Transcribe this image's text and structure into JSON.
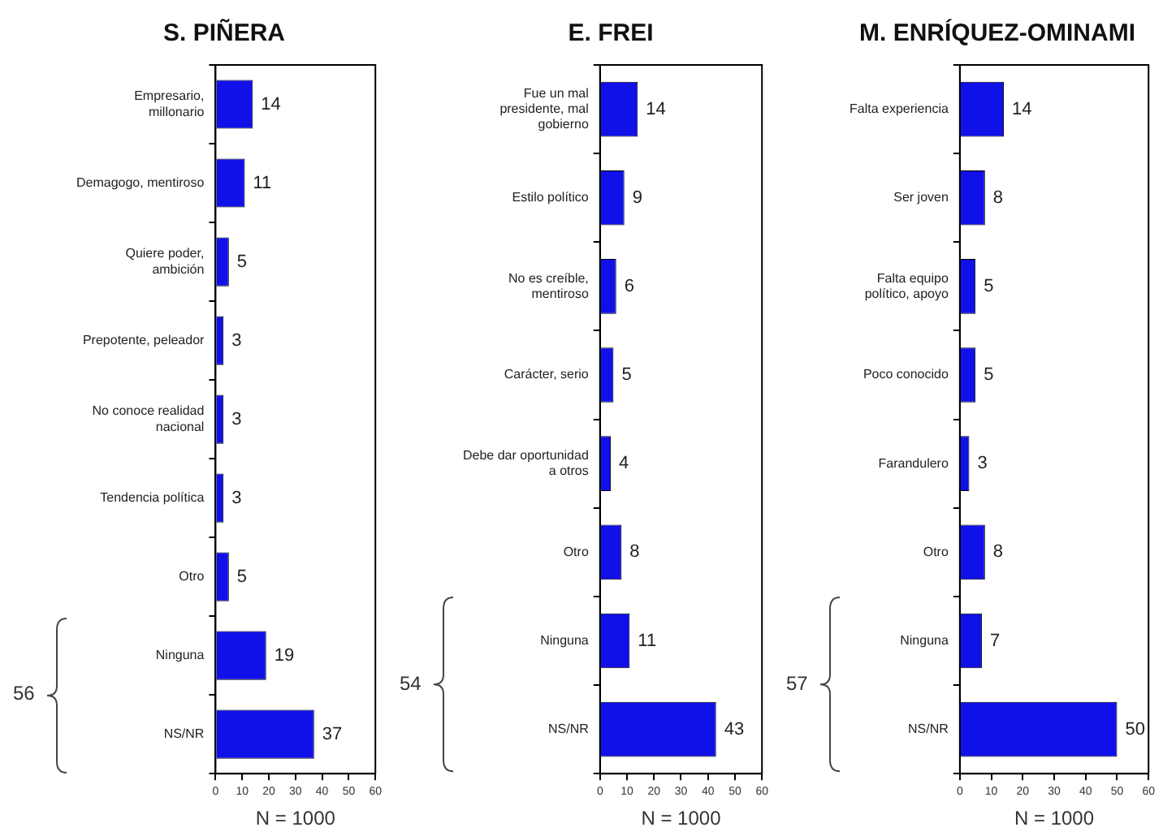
{
  "chart_data": [
    {
      "type": "bar",
      "orientation": "horizontal",
      "title": "S. PIÑERA",
      "categories": [
        "Empresario, millonario",
        "Demagogo, mentiroso",
        "Quiere poder, ambición",
        "Prepotente, peleador",
        "No conoce realidad nacional",
        "Tendencia política",
        "Otro",
        "Ninguna",
        "NS/NR"
      ],
      "values": [
        14,
        11,
        5,
        3,
        3,
        3,
        5,
        19,
        37
      ],
      "color": "#1010e8",
      "xlim": [
        0,
        60
      ],
      "xticks": [
        0,
        10,
        20,
        30,
        40,
        50,
        60
      ],
      "data_labels": true,
      "annotations": [
        "56",
        "N = 1000"
      ]
    },
    {
      "type": "bar",
      "orientation": "horizontal",
      "title": "E. FREI",
      "categories": [
        "Fue un mal presidente, mal gobierno",
        "Estilo político",
        "No es creíble, mentiroso",
        "Carácter, serio",
        "Debe dar oportunidad a otros",
        "Otro",
        "Ninguna",
        "NS/NR"
      ],
      "values": [
        14,
        9,
        6,
        5,
        4,
        8,
        11,
        43
      ],
      "color": "#1010e8",
      "xlim": [
        0,
        60
      ],
      "xticks": [
        0,
        10,
        20,
        30,
        40,
        50,
        60
      ],
      "data_labels": true,
      "annotations": [
        "54",
        "N = 1000"
      ]
    },
    {
      "type": "bar",
      "orientation": "horizontal",
      "title": "M. ENRÍQUEZ-OMINAMI",
      "categories": [
        "Falta experiencia",
        "Ser joven",
        "Falta equipo político, apoyo",
        "Poco conocido",
        "Farandulero",
        "Otro",
        "Ninguna",
        "NS/NR"
      ],
      "values": [
        14,
        8,
        5,
        5,
        3,
        8,
        7,
        50
      ],
      "color": "#1010e8",
      "xlim": [
        0,
        60
      ],
      "xticks": [
        0,
        10,
        20,
        30,
        40,
        50,
        60
      ],
      "data_labels": true,
      "annotations": [
        "57",
        "N = 1000"
      ]
    }
  ]
}
